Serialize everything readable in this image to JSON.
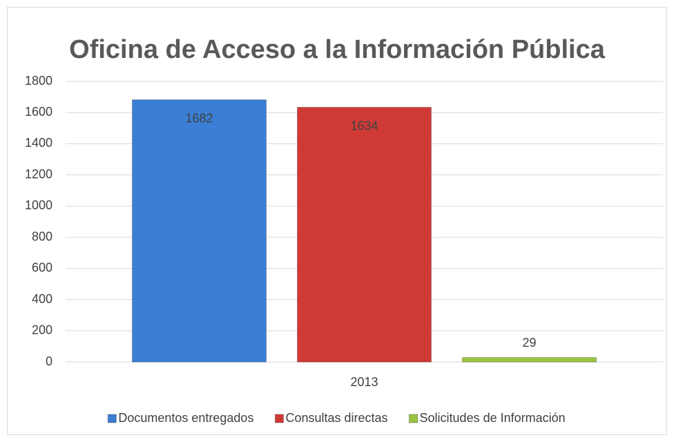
{
  "chart_data": {
    "type": "bar",
    "title": "Oficina de Acceso a la Información Pública",
    "categories": [
      "2013"
    ],
    "series": [
      {
        "name": "Documentos entregados",
        "color": "#3a7fd5",
        "values": [
          1682
        ]
      },
      {
        "name": "Consultas directas",
        "color": "#d03a36",
        "values": [
          1634
        ]
      },
      {
        "name": "Solicitudes de Información",
        "color": "#9bc440",
        "values": [
          29
        ]
      }
    ],
    "ylim": [
      0,
      1800
    ],
    "yticks": [
      0,
      200,
      400,
      600,
      800,
      1000,
      1200,
      1400,
      1600,
      1800
    ],
    "grid": true,
    "legend": "bottom"
  }
}
